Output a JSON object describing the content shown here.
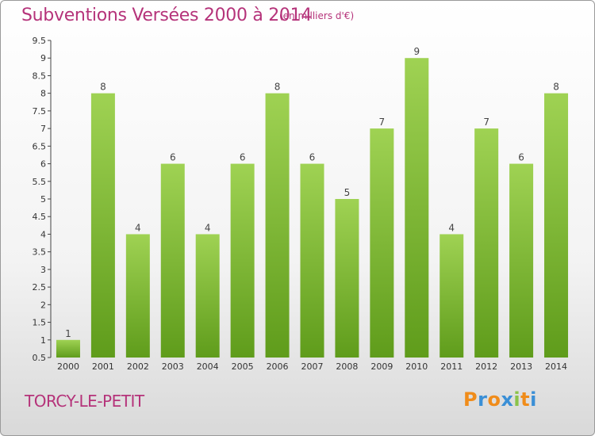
{
  "header": {
    "title": "Subventions Versées 2000 à 2014",
    "subtitle": "(en milliers d'€)"
  },
  "footer": {
    "commune": "TORCY-LE-PETIT",
    "logo": "Proxiti"
  },
  "colors": {
    "title": "#b5337a",
    "bar_top": "#9fd253",
    "bar_bottom": "#5f9c1b",
    "logo_letters": [
      "#f08c1a",
      "#3a8fd6",
      "#f08c1a",
      "#3a8fd6",
      "#8bc34a",
      "#f08c1a",
      "#3a8fd6"
    ]
  },
  "chart_data": {
    "type": "bar",
    "title": "Subventions Versées 2000 à 2014",
    "subtitle": "(en milliers d'€)",
    "categories": [
      "2000",
      "2001",
      "2002",
      "2003",
      "2004",
      "2005",
      "2006",
      "2007",
      "2008",
      "2009",
      "2010",
      "2011",
      "2012",
      "2013",
      "2014"
    ],
    "values": [
      1,
      8,
      4,
      6,
      4,
      6,
      8,
      6,
      5,
      7,
      9,
      4,
      7,
      6,
      8
    ],
    "ylim": [
      0.5,
      9.5
    ],
    "yticks": [
      "0.5",
      "1",
      "1.5",
      "2",
      "2.5",
      "3",
      "3.5",
      "4",
      "4.5",
      "5",
      "5.5",
      "6",
      "6.5",
      "7",
      "7.5",
      "8",
      "8.5",
      "9",
      "9.5"
    ],
    "grid": false,
    "legend": "none"
  }
}
